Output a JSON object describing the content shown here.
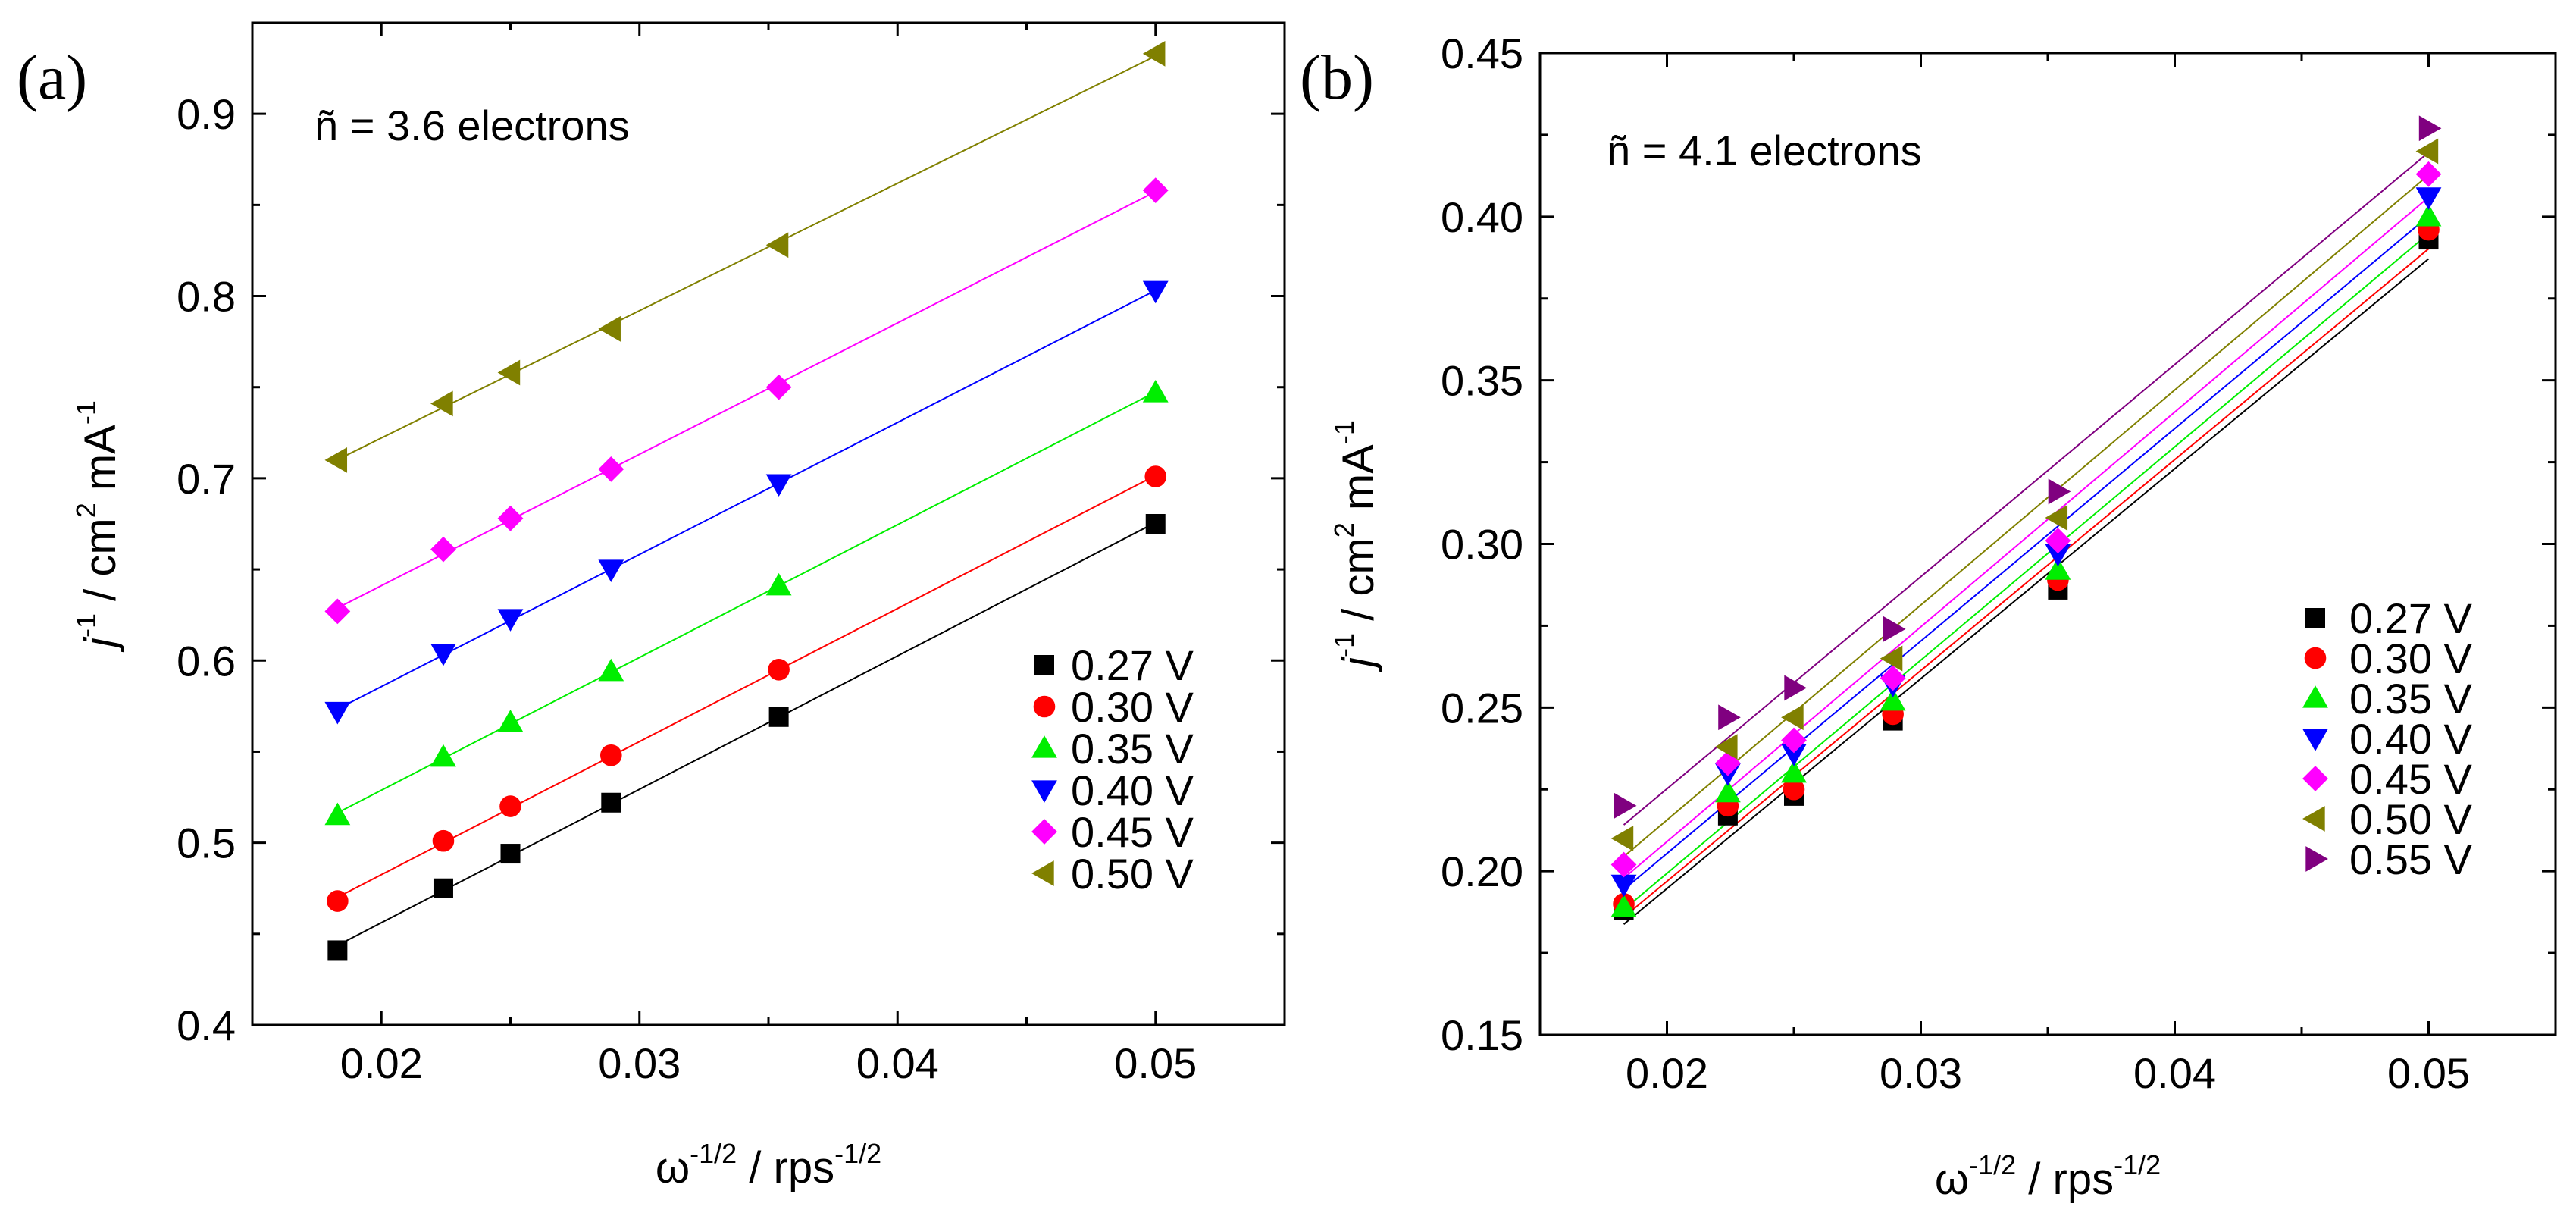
{
  "chart_data": [
    {
      "panel_label": "(a)",
      "type": "scatter",
      "annotation": "ñ = 3.6 electrons",
      "xlabel": {
        "base": "ω",
        "sup1": "-1/2",
        "mid": " / rps",
        "sup2": "-1/2"
      },
      "ylabel": {
        "base": "j",
        "sup1": "-1",
        "mid": " / cm",
        "sup2": "2",
        "end": " mA",
        "sup3": "-1"
      },
      "xlim": [
        0.015,
        0.055
      ],
      "ylim": [
        0.4,
        0.95
      ],
      "xticks": [
        0.02,
        0.03,
        0.04,
        0.05
      ],
      "xticklabels": [
        "0.02",
        "0.03",
        "0.04",
        "0.05"
      ],
      "yticks": [
        0.4,
        0.5,
        0.6,
        0.7,
        0.8,
        0.9
      ],
      "yticklabels": [
        "0.4",
        "0.5",
        "0.6",
        "0.7",
        "0.8",
        "0.9"
      ],
      "x": [
        0.0183,
        0.0224,
        0.025,
        0.0289,
        0.0354,
        0.05
      ],
      "legend_position": "lower-right",
      "series": [
        {
          "name": "0.27 V",
          "marker": "square",
          "color": "#000000",
          "values": [
            0.441,
            0.475,
            0.494,
            0.522,
            0.569,
            0.675
          ]
        },
        {
          "name": "0.30 V",
          "marker": "circle",
          "color": "#ff0000",
          "values": [
            0.468,
            0.501,
            0.52,
            0.548,
            0.595,
            0.701
          ]
        },
        {
          "name": "0.35 V",
          "marker": "triangle-up",
          "color": "#00ee00",
          "values": [
            0.515,
            0.547,
            0.566,
            0.594,
            0.641,
            0.747
          ]
        },
        {
          "name": "0.40 V",
          "marker": "triangle-down",
          "color": "#0000ff",
          "values": [
            0.572,
            0.604,
            0.623,
            0.65,
            0.697,
            0.803
          ]
        },
        {
          "name": "0.45 V",
          "marker": "diamond",
          "color": "#ff00ff",
          "values": [
            0.627,
            0.661,
            0.678,
            0.705,
            0.75,
            0.858
          ]
        },
        {
          "name": "0.50 V",
          "marker": "triangle-left",
          "color": "#808000",
          "values": [
            0.71,
            0.741,
            0.758,
            0.782,
            0.828,
            0.933
          ]
        }
      ]
    },
    {
      "panel_label": "(b)",
      "type": "scatter",
      "annotation": "ñ = 4.1 electrons",
      "xlabel": {
        "base": "ω",
        "sup1": "-1/2",
        "mid": " / rps",
        "sup2": "-1/2"
      },
      "ylabel": {
        "base": "j",
        "sup1": "-1",
        "mid": " / cm",
        "sup2": "2",
        "end": " mA",
        "sup3": "-1"
      },
      "xlim": [
        0.015,
        0.055
      ],
      "ylim": [
        0.15,
        0.45
      ],
      "xticks": [
        0.02,
        0.03,
        0.04,
        0.05
      ],
      "xticklabels": [
        "0.02",
        "0.03",
        "0.04",
        "0.05"
      ],
      "yticks": [
        0.15,
        0.2,
        0.25,
        0.3,
        0.35,
        0.4,
        0.45
      ],
      "yticklabels": [
        "0.15",
        "0.20",
        "0.25",
        "0.30",
        "0.35",
        "0.40",
        "0.45"
      ],
      "x": [
        0.0183,
        0.0224,
        0.025,
        0.0289,
        0.0354,
        0.05
      ],
      "legend_position": "lower-right",
      "series": [
        {
          "name": "0.27 V",
          "marker": "square",
          "color": "#000000",
          "values": [
            0.188,
            0.217,
            0.223,
            0.246,
            0.286,
            0.393
          ]
        },
        {
          "name": "0.30 V",
          "marker": "circle",
          "color": "#ff0000",
          "values": [
            0.19,
            0.22,
            0.225,
            0.248,
            0.289,
            0.396
          ]
        },
        {
          "name": "0.35 V",
          "marker": "triangle-up",
          "color": "#00ee00",
          "values": [
            0.189,
            0.224,
            0.23,
            0.252,
            0.292,
            0.4
          ]
        },
        {
          "name": "0.40 V",
          "marker": "triangle-down",
          "color": "#0000ff",
          "values": [
            0.196,
            0.23,
            0.236,
            0.257,
            0.297,
            0.406
          ]
        },
        {
          "name": "0.45 V",
          "marker": "diamond",
          "color": "#ff00ff",
          "values": [
            0.202,
            0.233,
            0.24,
            0.259,
            0.301,
            0.413
          ]
        },
        {
          "name": "0.50 V",
          "marker": "triangle-left",
          "color": "#808000",
          "values": [
            0.21,
            0.238,
            0.247,
            0.265,
            0.308,
            0.42
          ]
        },
        {
          "name": "0.55 V",
          "marker": "triangle-right",
          "color": "#800080",
          "values": [
            0.22,
            0.247,
            0.256,
            0.274,
            0.316,
            0.427
          ]
        }
      ]
    }
  ]
}
